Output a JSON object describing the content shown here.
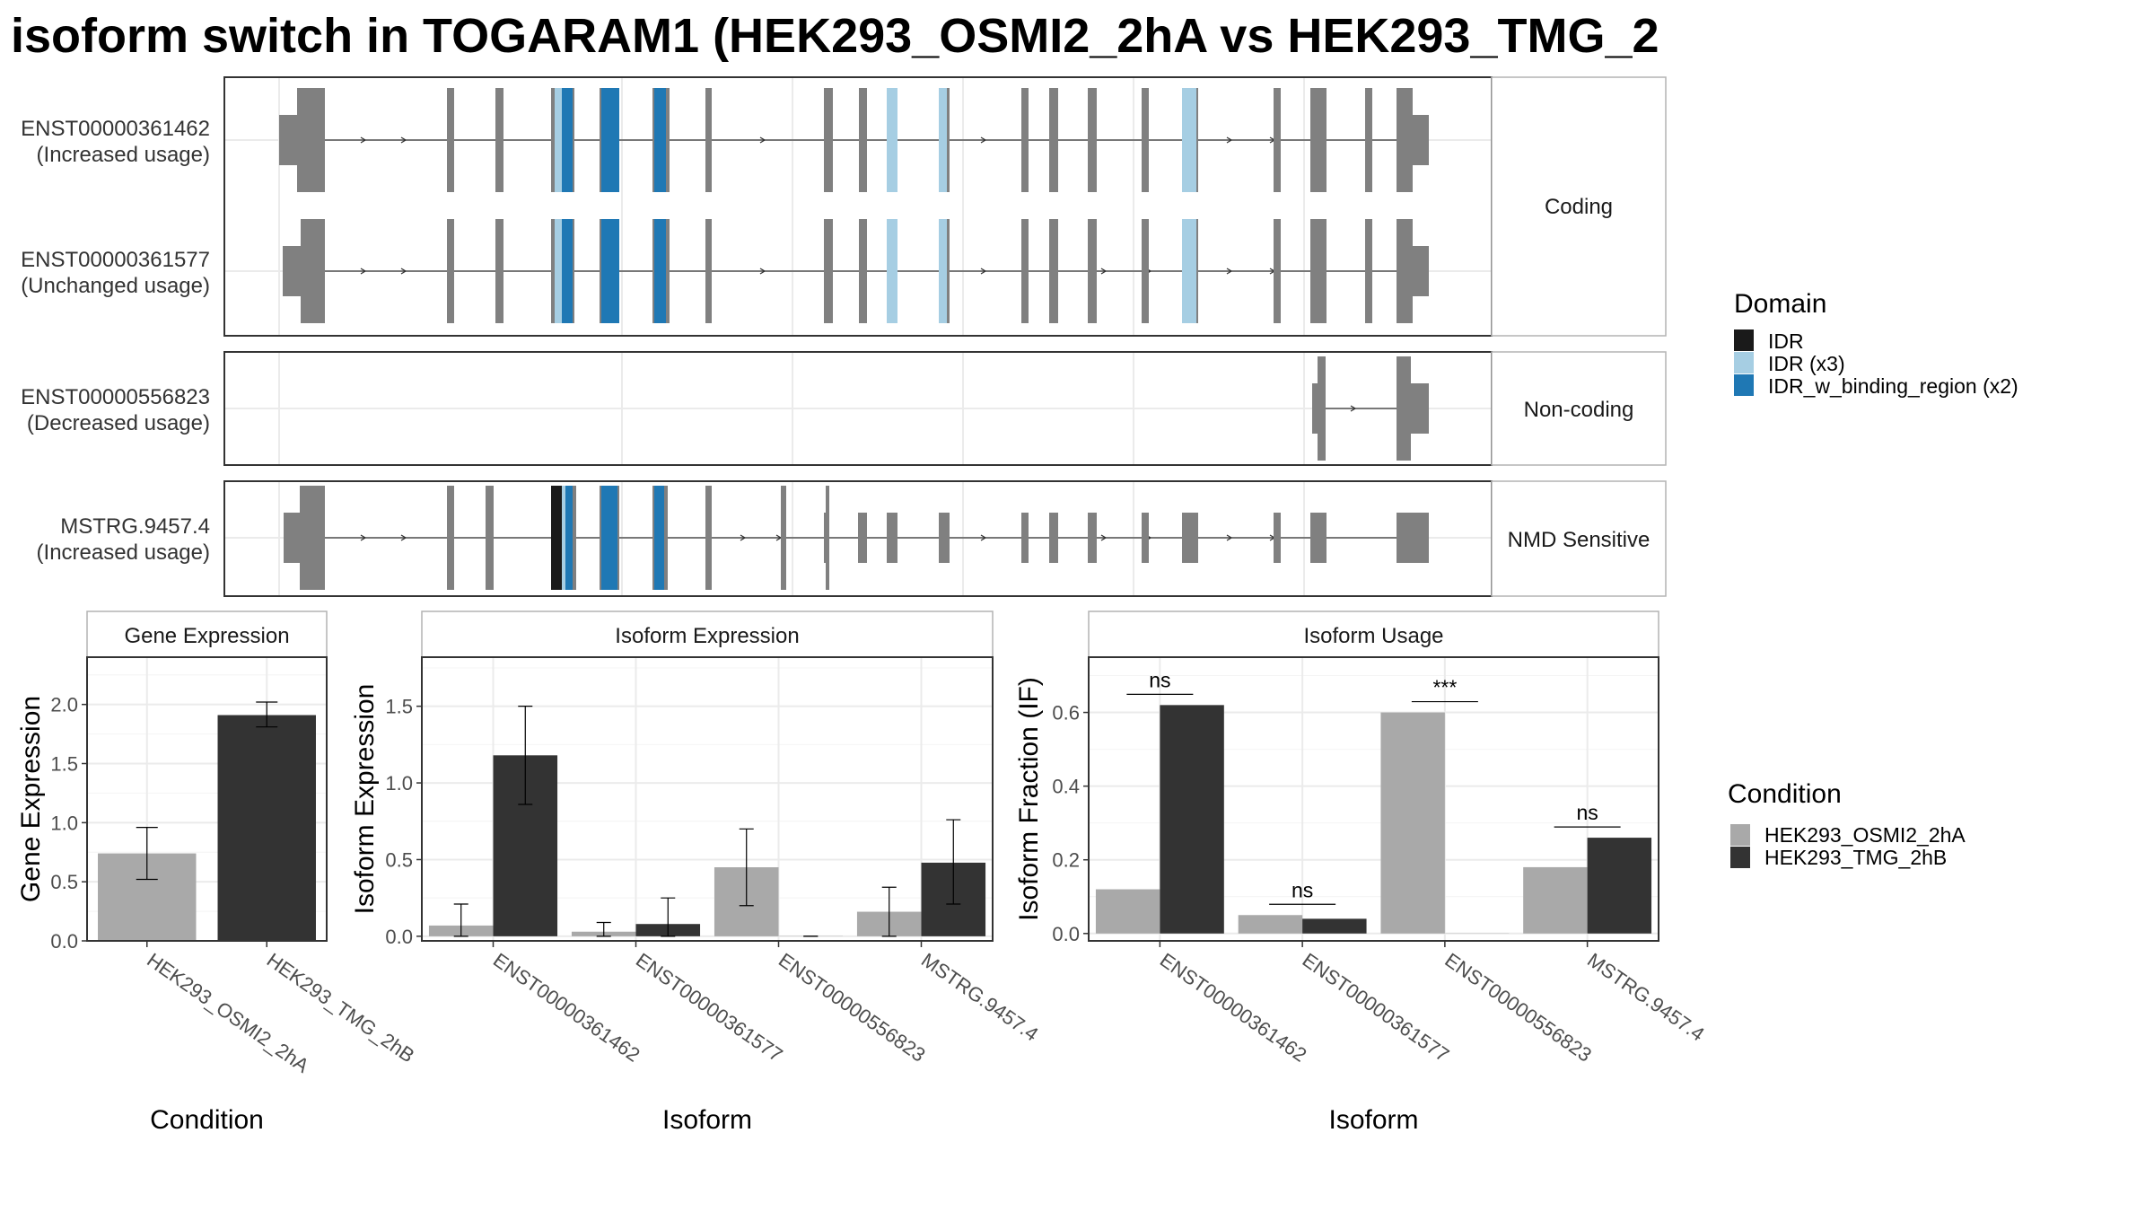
{
  "title": "isoform switch in TOGARAM1 (HEK293_OSMI2_2hA vs HEK293_TMG_2",
  "colors": {
    "exon": "#808080",
    "IDR": "#1a1a1a",
    "IDR (x3)": "#a6cee3",
    "IDR_w_binding_region (x2)": "#1f78b4",
    "cond1": "#a9a9a9",
    "cond2": "#333333"
  },
  "transcripts": {
    "panels": [
      {
        "label": "Coding",
        "rows": [
          {
            "id": "ENST00000361462",
            "usage": "(Increased usage)"
          },
          {
            "id": "ENST00000361577",
            "usage": "(Unchanged usage)"
          }
        ]
      },
      {
        "label": "Non-coding",
        "rows": [
          {
            "id": "ENST00000556823",
            "usage": "(Decreased usage)"
          }
        ]
      },
      {
        "label": "NMD Sensitive",
        "rows": [
          {
            "id": "MSTRG.9457.4",
            "usage": "(Increased usage)"
          }
        ]
      }
    ]
  },
  "domain_legend": {
    "title": "Domain",
    "items": [
      "IDR",
      "IDR (x3)",
      "IDR_w_binding_region (x2)"
    ]
  },
  "condition_legend": {
    "title": "Condition",
    "items": [
      "HEK293_OSMI2_2hA",
      "HEK293_TMG_2hB"
    ]
  },
  "chart_data": [
    {
      "type": "bar",
      "title": "Gene Expression",
      "xlabel": "Condition",
      "ylabel": "Gene Expression",
      "categories": [
        "HEK293_OSMI2_2hA",
        "HEK293_TMG_2hB"
      ],
      "values": [
        0.74,
        1.91
      ],
      "errors": [
        [
          0.52,
          0.96
        ],
        [
          1.81,
          2.02
        ]
      ],
      "ylim": [
        0,
        2.4
      ],
      "yticks": [
        "0.0",
        "0.5",
        "1.0",
        "1.5",
        "2.0"
      ]
    },
    {
      "type": "bar",
      "title": "Isoform Expression",
      "xlabel": "Isoform",
      "ylabel": "Isoform Expression",
      "categories": [
        "ENST00000361462",
        "ENST00000361577",
        "ENST00000556823",
        "MSTRG.9457.4"
      ],
      "series": [
        {
          "name": "HEK293_OSMI2_2hA",
          "values": [
            0.07,
            0.03,
            0.45,
            0.16
          ],
          "errors": [
            [
              0.0,
              0.21
            ],
            [
              0.0,
              0.09
            ],
            [
              0.2,
              0.7
            ],
            [
              0.0,
              0.32
            ]
          ]
        },
        {
          "name": "HEK293_TMG_2hB",
          "values": [
            1.18,
            0.08,
            0.0,
            0.48
          ],
          "errors": [
            [
              0.86,
              1.5
            ],
            [
              0.0,
              0.25
            ],
            [
              0.0,
              0.0
            ],
            [
              0.21,
              0.76
            ]
          ]
        }
      ],
      "ylim": [
        -0.03,
        1.82
      ],
      "yticks": [
        "0.0",
        "0.5",
        "1.0",
        "1.5"
      ]
    },
    {
      "type": "bar",
      "title": "Isoform Usage",
      "xlabel": "Isoform",
      "ylabel": "Isoform Fraction (IF)",
      "categories": [
        "ENST00000361462",
        "ENST00000361577",
        "ENST00000556823",
        "MSTRG.9457.4"
      ],
      "series": [
        {
          "name": "HEK293_OSMI2_2hA",
          "values": [
            0.12,
            0.05,
            0.6,
            0.18
          ]
        },
        {
          "name": "HEK293_TMG_2hB",
          "values": [
            0.62,
            0.04,
            0.0,
            0.26
          ]
        }
      ],
      "significance": [
        "ns",
        "ns",
        "***",
        "ns"
      ],
      "ylim": [
        -0.02,
        0.75
      ],
      "yticks": [
        "0.0",
        "0.2",
        "0.4",
        "0.6"
      ]
    }
  ]
}
